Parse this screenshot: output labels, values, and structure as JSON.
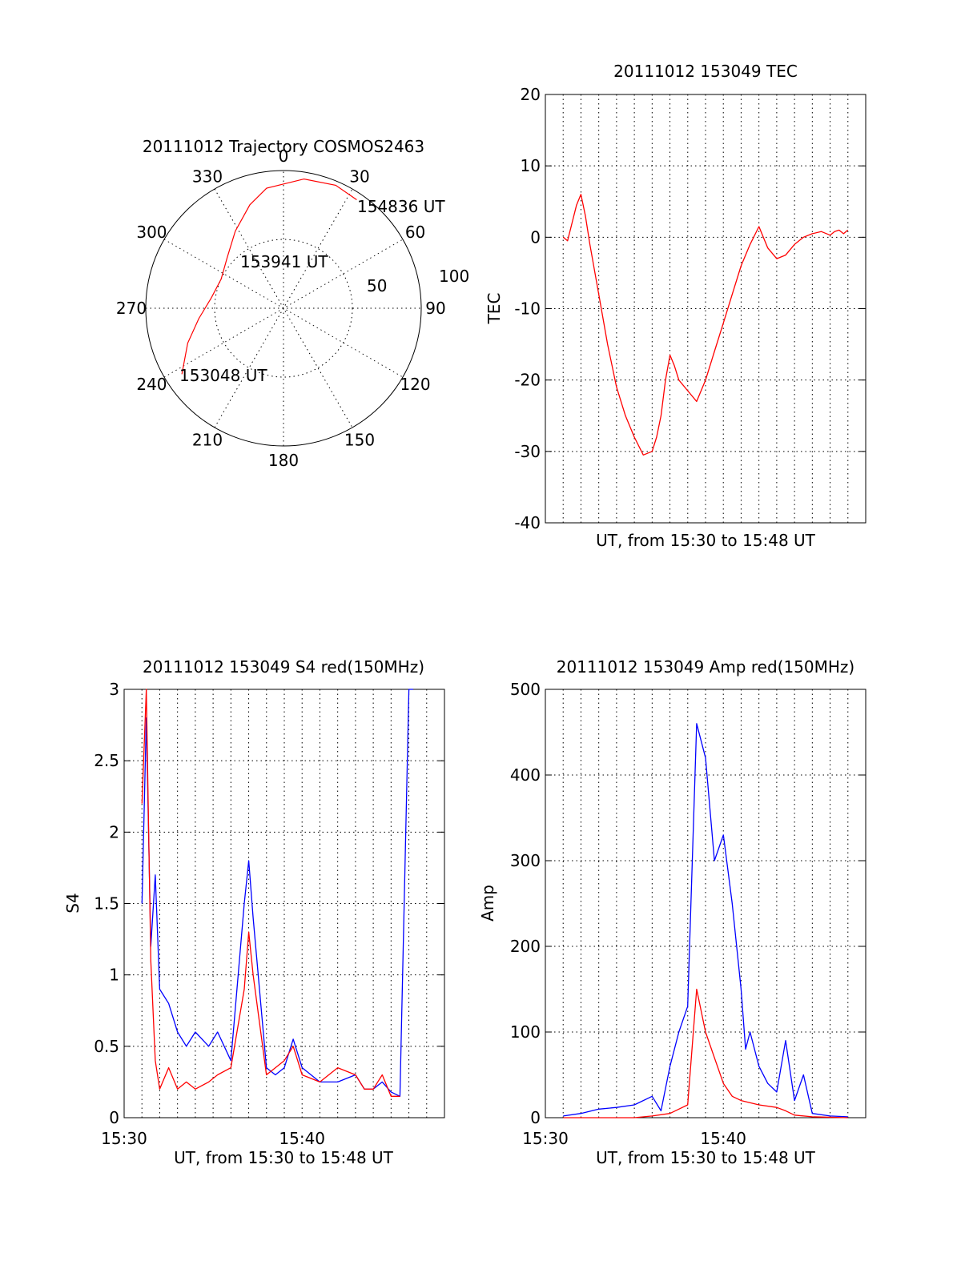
{
  "colors": {
    "red": "#ff0000",
    "blue": "#0000ff",
    "axis": "#000000",
    "background": "#ffffff"
  },
  "panels": {
    "trajectory": {
      "title": "20111012 Trajectory COSMOS2463",
      "azimuth_labels": [
        "0",
        "30",
        "60",
        "90",
        "120",
        "150",
        "180",
        "210",
        "240",
        "270",
        "300",
        "330"
      ],
      "radius_labels": [
        "50",
        "100"
      ],
      "time_labels": {
        "end": "154836 UT",
        "mid": "153941 UT",
        "start": "153048 UT"
      }
    },
    "tec": {
      "title": "20111012 153049 TEC",
      "xlabel": "UT, from 15:30 to 15:48 UT",
      "ylabel": "TEC",
      "yticks": [
        "20",
        "10",
        "0",
        "-10",
        "-20",
        "-30",
        "-40"
      ]
    },
    "s4": {
      "title": "20111012 153049 S4 red(150MHz)",
      "xlabel": "UT, from 15:30 to 15:48 UT",
      "ylabel": "S4",
      "yticks": [
        "3",
        "2.5",
        "2",
        "1.5",
        "1",
        "0.5",
        "0"
      ],
      "xticks": [
        "15:30",
        "15:40"
      ]
    },
    "amp": {
      "title": "20111012 153049 Amp red(150MHz)",
      "xlabel": "UT, from 15:30 to 15:48 UT",
      "ylabel": "Amp",
      "yticks": [
        "500",
        "400",
        "300",
        "200",
        "100",
        "0"
      ],
      "xticks": [
        "15:30",
        "15:40"
      ]
    }
  },
  "chart_data": [
    {
      "type": "scatter",
      "subtype": "polar",
      "title": "20111012 Trajectory COSMOS2463",
      "radius_range": [
        0,
        100
      ],
      "azimuth_range": [
        0,
        360
      ],
      "series": [
        {
          "color": "#ff0000",
          "points": [
            {
              "az": 237,
              "r": 88
            },
            {
              "az": 250,
              "r": 74
            },
            {
              "az": 263,
              "r": 62
            },
            {
              "az": 278,
              "r": 53
            },
            {
              "az": 295,
              "r": 50
            },
            {
              "az": 312,
              "r": 55
            },
            {
              "az": 328,
              "r": 66
            },
            {
              "az": 342,
              "r": 79
            },
            {
              "az": 352,
              "r": 88
            },
            {
              "az": 9,
              "r": 95
            },
            {
              "az": 23,
              "r": 97
            },
            {
              "az": 34,
              "r": 95
            }
          ]
        }
      ],
      "annotations": [
        "154836 UT",
        "153941 UT",
        "153048 UT"
      ],
      "grid": true
    },
    {
      "type": "line",
      "title": "20111012 153049 TEC",
      "xlabel": "UT, from 15:30 to 15:48 UT",
      "ylabel": "TEC",
      "xlim": [
        15.5,
        15.8
      ],
      "ylim": [
        -40,
        20
      ],
      "grid": true,
      "series": [
        {
          "color": "#ff0000",
          "x": [
            15.5167,
            15.5208,
            15.525,
            15.5292,
            15.5333,
            15.5375,
            15.5417,
            15.55,
            15.5583,
            15.5667,
            15.575,
            15.5833,
            15.5917,
            15.6,
            15.6042,
            15.6083,
            15.6125,
            15.6167,
            15.6208,
            15.625,
            15.6333,
            15.6417,
            15.65,
            15.6583,
            15.6667,
            15.675,
            15.6833,
            15.6917,
            15.7,
            15.7083,
            15.7167,
            15.725,
            15.7333,
            15.7417,
            15.75,
            15.7583,
            15.7667,
            15.7708,
            15.775,
            15.7792,
            15.7833
          ],
          "y": [
            0,
            -0.5,
            2,
            4.5,
            6,
            3,
            -1,
            -8,
            -15,
            -21,
            -25,
            -28,
            -30.5,
            -30,
            -28,
            -25,
            -20,
            -16.5,
            -18,
            -20,
            -21.5,
            -23,
            -20,
            -16,
            -12,
            -8,
            -4,
            -1,
            1.5,
            -1.5,
            -3,
            -2.5,
            -1,
            0,
            0.5,
            0.8,
            0.3,
            0.8,
            1,
            0.5,
            1
          ]
        }
      ]
    },
    {
      "type": "line",
      "title": "20111012 153049 S4 red(150MHz)",
      "xlabel": "UT, from 15:30 to 15:48 UT",
      "ylabel": "S4",
      "xlim": [
        15.5,
        15.8
      ],
      "ylim": [
        0,
        3
      ],
      "grid": true,
      "series": [
        {
          "color": "#0000ff",
          "x": [
            15.5167,
            15.5208,
            15.525,
            15.5292,
            15.5333,
            15.5417,
            15.55,
            15.5583,
            15.5667,
            15.5792,
            15.5875,
            15.6,
            15.6125,
            15.6167,
            15.6208,
            15.6333,
            15.6417,
            15.65,
            15.6583,
            15.6667,
            15.6833,
            15.7,
            15.7167,
            15.725,
            15.7333,
            15.7417,
            15.75,
            15.7583,
            15.7667,
            15.7708
          ],
          "y": [
            1.5,
            2.8,
            1.2,
            1.7,
            0.9,
            0.8,
            0.6,
            0.5,
            0.6,
            0.5,
            0.6,
            0.4,
            1.5,
            1.8,
            1.4,
            0.35,
            0.3,
            0.35,
            0.55,
            0.35,
            0.25,
            0.25,
            0.3,
            0.2,
            0.2,
            0.25,
            0.18,
            0.15,
            3,
            3
          ]
        },
        {
          "color": "#ff0000",
          "x": [
            15.5167,
            15.5208,
            15.525,
            15.5292,
            15.5333,
            15.5417,
            15.55,
            15.5583,
            15.5667,
            15.5792,
            15.5875,
            15.6,
            15.6125,
            15.6167,
            15.6208,
            15.6333,
            15.6417,
            15.65,
            15.6583,
            15.6667,
            15.6833,
            15.7,
            15.7167,
            15.725,
            15.7333,
            15.7417,
            15.75,
            15.7583
          ],
          "y": [
            2.2,
            3,
            1.1,
            0.4,
            0.2,
            0.35,
            0.2,
            0.25,
            0.2,
            0.25,
            0.3,
            0.35,
            0.9,
            1.3,
            1.0,
            0.3,
            0.35,
            0.4,
            0.5,
            0.3,
            0.25,
            0.35,
            0.3,
            0.2,
            0.2,
            0.3,
            0.15,
            0.15
          ]
        }
      ]
    },
    {
      "type": "line",
      "title": "20111012 153049 Amp red(150MHz)",
      "xlabel": "UT, from 15:30 to 15:48 UT",
      "ylabel": "Amp",
      "xlim": [
        15.5,
        15.8
      ],
      "ylim": [
        0,
        500
      ],
      "grid": true,
      "series": [
        {
          "color": "#0000ff",
          "x": [
            15.5167,
            15.5333,
            15.55,
            15.5667,
            15.5833,
            15.6,
            15.6083,
            15.6167,
            15.625,
            15.6333,
            15.6417,
            15.65,
            15.6583,
            15.6667,
            15.675,
            15.6833,
            15.6875,
            15.6917,
            15.7,
            15.7083,
            15.7167,
            15.725,
            15.7333,
            15.7417,
            15.75,
            15.7667,
            15.7833
          ],
          "y": [
            2,
            5,
            10,
            12,
            15,
            25,
            8,
            60,
            100,
            130,
            460,
            420,
            300,
            330,
            250,
            150,
            80,
            100,
            60,
            40,
            30,
            90,
            20,
            50,
            5,
            2,
            1
          ]
        },
        {
          "color": "#ff0000",
          "x": [
            15.5167,
            15.5333,
            15.55,
            15.5667,
            15.5833,
            15.6,
            15.6167,
            15.625,
            15.6333,
            15.6417,
            15.65,
            15.6583,
            15.6667,
            15.675,
            15.6833,
            15.7,
            15.7167,
            15.725,
            15.7333,
            15.75,
            15.7833
          ],
          "y": [
            0,
            0,
            0,
            0,
            0,
            2,
            5,
            10,
            15,
            150,
            100,
            70,
            40,
            25,
            20,
            15,
            12,
            8,
            3,
            1,
            0
          ]
        }
      ]
    }
  ]
}
